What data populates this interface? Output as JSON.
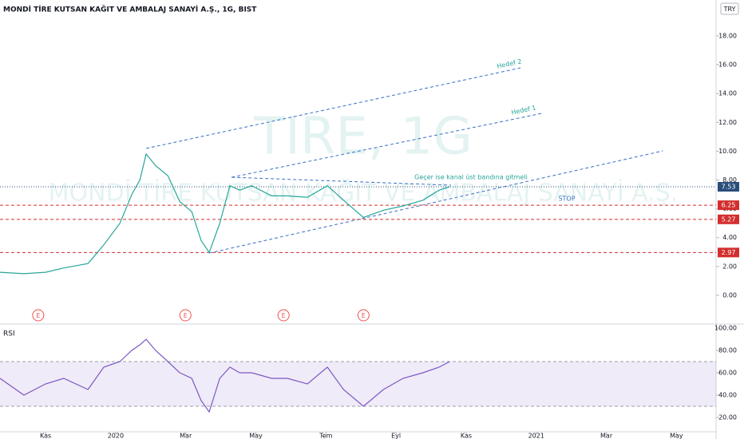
{
  "chart_data": [
    {
      "type": "line",
      "title": "MONDİ TİRE KUTSAN KAĞIT VE AMBALAJ SANAYİ A.Ş., 1G, BIST",
      "watermark": "TIRE, 1G",
      "watermark_name": "MONDİ TİRE KUTSAN KAĞIT VE AMBALAJ SANAYİ A.Ş.",
      "currency": "TRY",
      "x": [
        -0.3,
        0.38,
        1,
        1.52,
        2.21,
        2.66,
        3.12,
        3.46,
        3.69,
        3.87,
        4.14,
        4.49,
        4.83,
        5.17,
        5.44,
        5.67,
        5.97,
        6.26,
        6.54,
        6.88,
        7.45,
        7.9,
        8.47,
        9.04,
        9.5,
        10.07,
        10.64,
        11.2,
        11.77,
        12.23,
        12.53
      ],
      "values": [
        1.6,
        1.5,
        1.6,
        1.9,
        2.2,
        3.5,
        5.0,
        7.0,
        8.0,
        9.8,
        9.0,
        8.3,
        6.5,
        5.8,
        3.8,
        2.97,
        5.0,
        7.6,
        7.3,
        7.6,
        6.9,
        6.9,
        6.8,
        7.6,
        6.6,
        5.4,
        5.9,
        6.2,
        6.6,
        7.3,
        7.53
      ],
      "color": "#26a69a",
      "xlim": [
        -0.3,
        20.13
      ],
      "ylim": [
        -1.94,
        20.49
      ],
      "yticks": [
        {
          "value": 0,
          "label": "0.00"
        },
        {
          "value": 2,
          "label": "2.00"
        },
        {
          "value": 4,
          "label": "4.00"
        },
        {
          "value": 6,
          "label": "6.00"
        },
        {
          "value": 8,
          "label": "8.00"
        },
        {
          "value": 10,
          "label": "10.00"
        },
        {
          "value": 12,
          "label": "12.00"
        },
        {
          "value": 14,
          "label": "14.00"
        },
        {
          "value": 16,
          "label": "16.00"
        },
        {
          "value": 18,
          "label": "18.00"
        }
      ],
      "levels": [
        {
          "value": 7.53,
          "color": "#2a4d7a"
        },
        {
          "value": 6.25,
          "color": "#d32f2f"
        },
        {
          "value": 5.27,
          "color": "#d32f2f"
        },
        {
          "value": 2.97,
          "color": "#d32f2f"
        }
      ],
      "trendlines": [
        {
          "x": [
            3.87,
            14.55
          ],
          "y": [
            10.19,
            15.78
          ]
        },
        {
          "x": [
            6.31,
            15.15
          ],
          "y": [
            8.19,
            12.62
          ]
        },
        {
          "x": [
            5.67,
            18.61
          ],
          "y": [
            2.93,
            10.02
          ]
        },
        {
          "x": [
            6.31,
            12.57
          ],
          "y": [
            8.19,
            7.64
          ]
        }
      ],
      "trend_color": "#3a6fc4",
      "annotations": [
        "Hedef 2",
        "Hedef 1",
        "Geçer ise kanal üst bandına gitmeli",
        "STOP"
      ],
      "events": {
        "label": "E",
        "x": [
          0.79,
          4.99,
          7.79,
          10.07
        ]
      }
    },
    {
      "type": "line",
      "title": "RSI",
      "x": [
        -0.3,
        0.38,
        1,
        1.52,
        2.21,
        2.66,
        3.12,
        3.46,
        3.69,
        3.87,
        4.14,
        4.49,
        4.83,
        5.17,
        5.44,
        5.67,
        5.97,
        6.26,
        6.54,
        6.88,
        7.45,
        7.9,
        8.47,
        9.04,
        9.5,
        10.07,
        10.64,
        11.2,
        11.77,
        12.23,
        12.53
      ],
      "values": [
        55,
        40,
        50,
        55,
        45,
        65,
        70,
        80,
        85,
        90,
        80,
        70,
        60,
        55,
        35,
        25,
        55,
        65,
        60,
        60,
        55,
        55,
        50,
        65,
        45,
        30,
        45,
        55,
        60,
        65,
        70
      ],
      "color": "#7e57c2",
      "band": [
        30,
        70
      ],
      "xlim": [
        -0.3,
        20.13
      ],
      "ylim": [
        7.86,
        102.9
      ],
      "yticks": [
        {
          "value": 20,
          "label": "20.00"
        },
        {
          "value": 40,
          "label": "40.00"
        },
        {
          "value": 60,
          "label": "60.00"
        },
        {
          "value": 80,
          "label": "80.00"
        },
        {
          "value": 100,
          "label": "100.00"
        }
      ],
      "xticks": [
        {
          "value": 1,
          "label": "Kas"
        },
        {
          "value": 3,
          "label": "2020"
        },
        {
          "value": 5,
          "label": "Mar"
        },
        {
          "value": 7,
          "label": "May"
        },
        {
          "value": 9,
          "label": "Tem"
        },
        {
          "value": 11,
          "label": "Eyl"
        },
        {
          "value": 13,
          "label": "Kas"
        },
        {
          "value": 15,
          "label": "2021"
        },
        {
          "value": 17,
          "label": "Mar"
        },
        {
          "value": 19,
          "label": "May"
        }
      ]
    }
  ]
}
